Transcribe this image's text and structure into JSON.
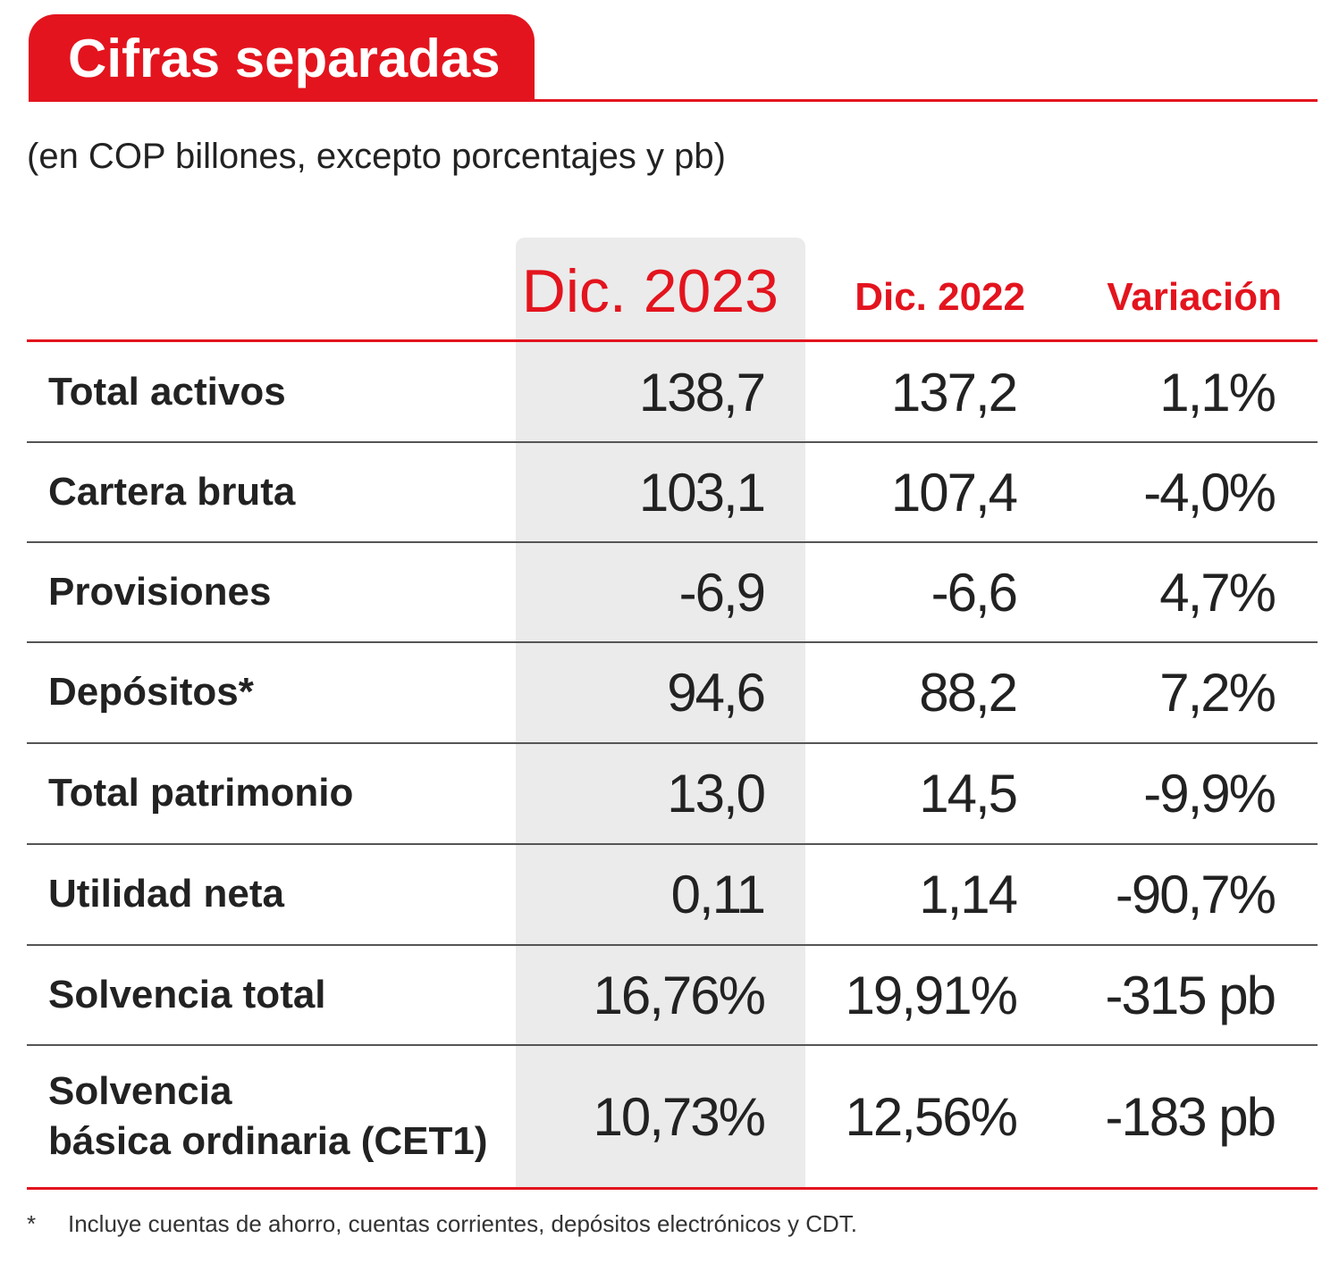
{
  "title": "Cifras separadas",
  "subtitle": "(en COP billones, excepto porcentajes y pb)",
  "colors": {
    "accent": "#e3141e",
    "highlight_column": "#ebebeb"
  },
  "headers": {
    "col1": "Dic. 2023",
    "col2": "Dic. 2022",
    "col3": "Variación"
  },
  "rows": [
    {
      "label": "Total activos",
      "dic2023": "138,7",
      "dic2022": "137,2",
      "variacion": "1,1%"
    },
    {
      "label": "Cartera bruta",
      "dic2023": "103,1",
      "dic2022": "107,4",
      "variacion": "-4,0%"
    },
    {
      "label": "Provisiones",
      "dic2023": "-6,9",
      "dic2022": "-6,6",
      "variacion": "4,7%"
    },
    {
      "label": "Depósitos*",
      "dic2023": "94,6",
      "dic2022": "88,2",
      "variacion": "7,2%"
    },
    {
      "label": "Total patrimonio",
      "dic2023": "13,0",
      "dic2022": "14,5",
      "variacion": "-9,9%"
    },
    {
      "label": "Utilidad neta",
      "dic2023": "0,11",
      "dic2022": "1,14",
      "variacion": "-90,7%"
    },
    {
      "label": "Solvencia total",
      "dic2023": "16,76%",
      "dic2022": "19,91%",
      "variacion": "-315 pb"
    },
    {
      "label": "Solvencia\nbásica ordinaria (CET1)",
      "dic2023": "10,73%",
      "dic2022": "12,56%",
      "variacion": "-183 pb"
    }
  ],
  "footnote": {
    "mark": "*",
    "text": "Incluye cuentas de ahorro, cuentas corrientes, depósitos electrónicos y CDT."
  }
}
